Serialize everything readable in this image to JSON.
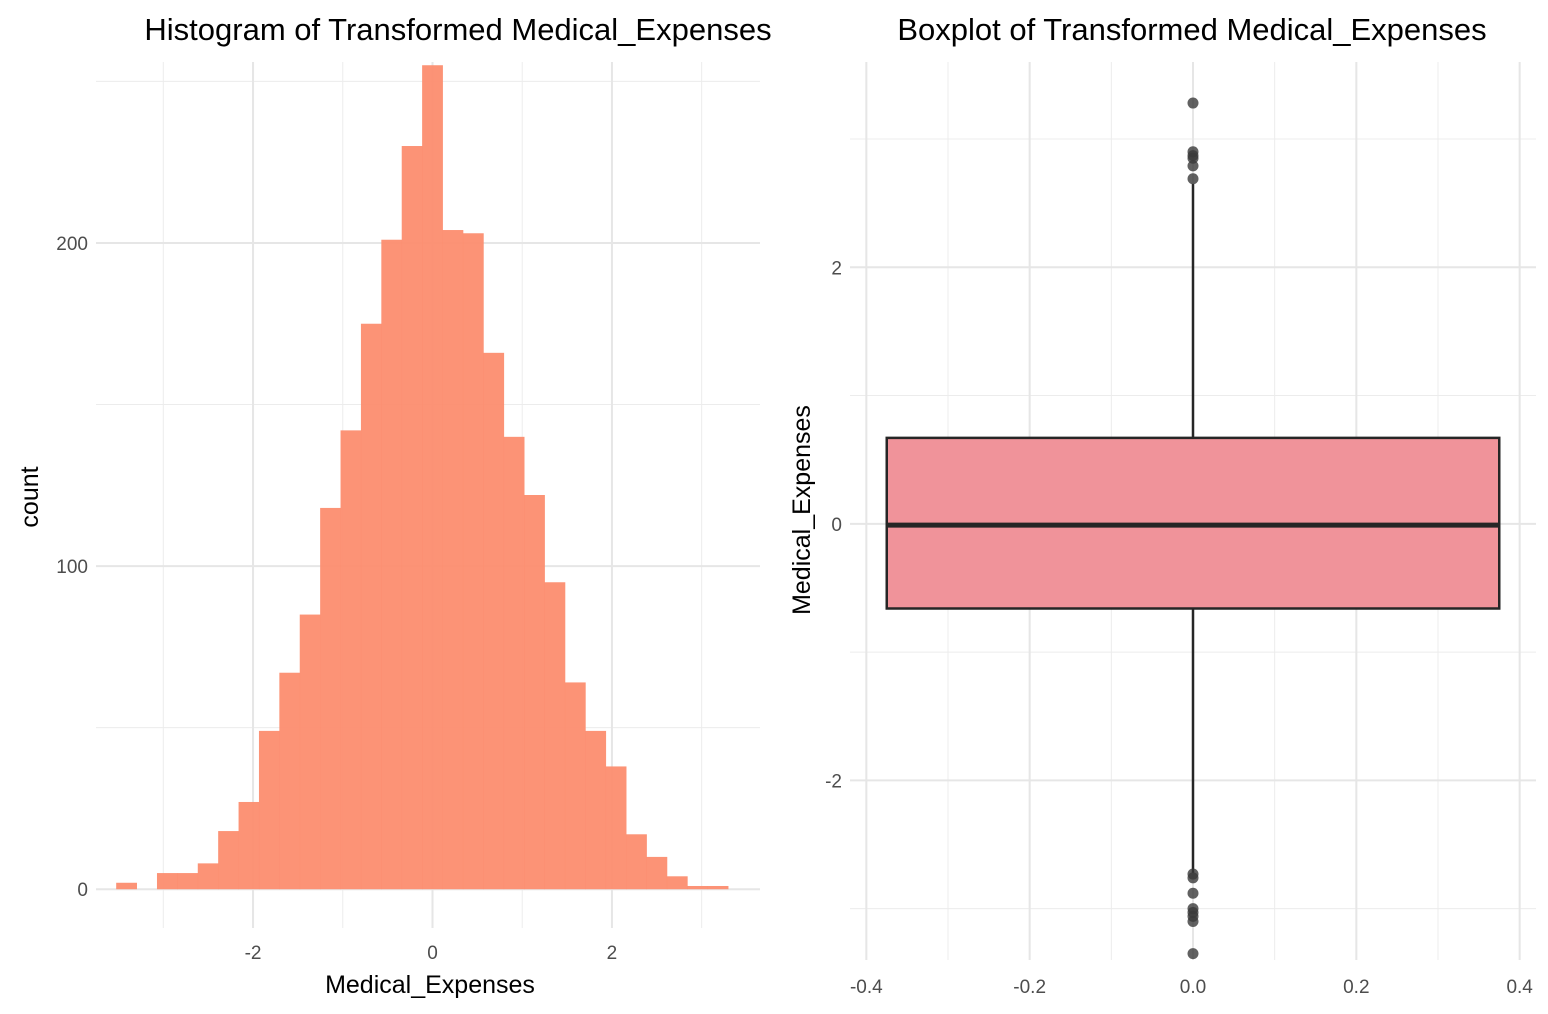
{
  "chart_data": [
    {
      "type": "bar",
      "subtype": "histogram",
      "title": "Histogram of Transformed Medical_Expenses",
      "xlabel": "Medical_Expenses",
      "ylabel": "count",
      "xlim": [
        -3.75,
        3.65
      ],
      "ylim": [
        -12,
        256
      ],
      "xticks": [
        -2,
        0,
        2
      ],
      "xtick_labels": [
        "-2",
        "0",
        "2"
      ],
      "yticks": [
        0,
        100,
        200
      ],
      "ytick_labels": [
        "0",
        "100",
        "200"
      ],
      "grid": true,
      "fill_color": "#fc8d6f",
      "bin_width": 0.2273,
      "bins_start": -3.525,
      "counts": [
        2,
        0,
        5,
        5,
        8,
        18,
        27,
        49,
        67,
        85,
        118,
        142,
        175,
        201,
        230,
        255,
        204,
        203,
        166,
        140,
        122,
        95,
        64,
        49,
        38,
        17,
        10,
        4,
        1,
        1
      ]
    },
    {
      "type": "boxplot",
      "title": "Boxplot of Transformed Medical_Expenses",
      "xlabel": "",
      "ylabel": "Medical_Expenses",
      "xlim": [
        -0.42,
        0.42
      ],
      "ylim": [
        -3.4,
        3.6
      ],
      "xticks": [
        -0.4,
        -0.2,
        0.0,
        0.2,
        0.4
      ],
      "xtick_labels": [
        "-0.4",
        "-0.2",
        "0.0",
        "0.2",
        "0.4"
      ],
      "yticks": [
        -2,
        0,
        2
      ],
      "ytick_labels": [
        "-2",
        "0",
        "2"
      ],
      "grid": true,
      "fill_color": "#f0939a",
      "box_xmin": -0.375,
      "box_xmax": 0.375,
      "x_center": 0.0,
      "q1": -0.66,
      "median": -0.01,
      "q3": 0.67,
      "whisker_low": -2.72,
      "whisker_high": 2.65,
      "outliers": [
        3.28,
        2.9,
        2.87,
        2.85,
        2.79,
        2.69,
        -2.73,
        -2.76,
        -2.88,
        -3.0,
        -3.03,
        -3.06,
        -3.1,
        -3.35
      ]
    }
  ]
}
